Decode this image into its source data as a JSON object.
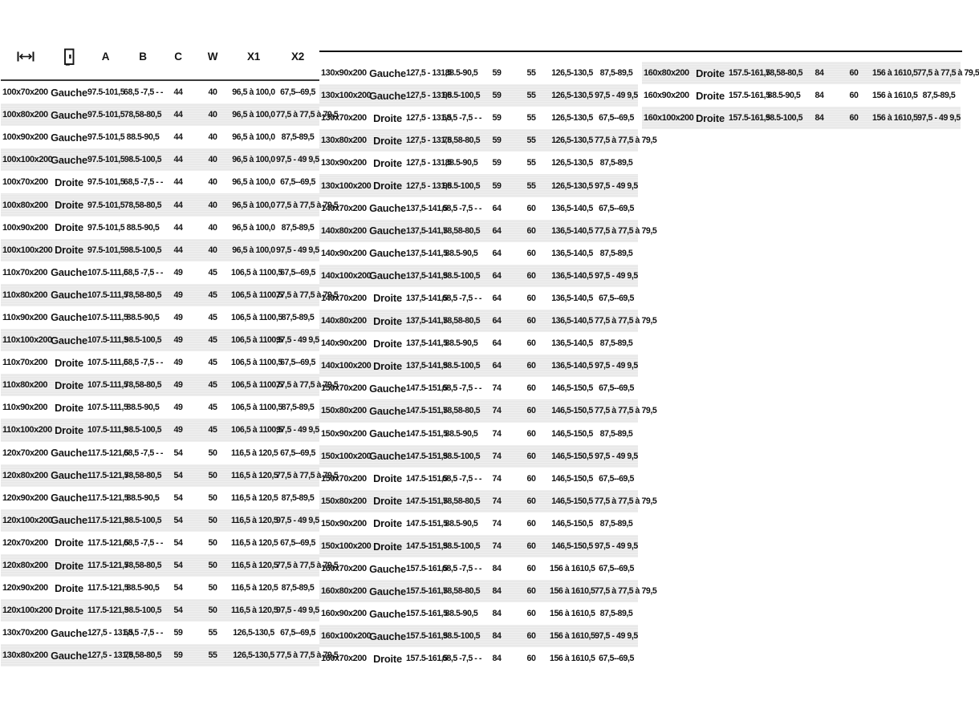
{
  "document": {
    "kind": "dimension-spec-table",
    "language": "fr"
  },
  "colors": {
    "background": "#ffffff",
    "stripe": "#ececec",
    "text": "#141414",
    "rule": "#0a0a0a"
  },
  "table": {
    "header": {
      "size_icon": "width-dimension-icon",
      "side_icon": "door-icon",
      "labels": [
        "A",
        "B",
        "C",
        "W",
        "X1",
        "X2"
      ]
    },
    "rows": [
      {
        "size": "100x70x200",
        "side": "Gauche",
        "a": "97.5-101,5",
        "b": "68,5 -7,5 - -",
        "c": "44",
        "w": "40",
        "x1": "96,5 à 100,0",
        "x2": "67,5--69,5"
      },
      {
        "size": "100x80x200",
        "side": "Gauche",
        "a": "97.5-101,5",
        "b": "78,58-80,5",
        "c": "44",
        "w": "40",
        "x1": "96,5 à 100,0",
        "x2": "77,5 à 77,5 à 79,5"
      },
      {
        "size": "100x90x200",
        "side": "Gauche",
        "a": "97.5-101,5",
        "b": "88.5-90,5",
        "c": "44",
        "w": "40",
        "x1": "96,5 à 100,0",
        "x2": "87,5-89,5"
      },
      {
        "size": "100x100x200",
        "side": "Gauche",
        "a": "97.5-101,5",
        "b": "98.5-100,5",
        "c": "44",
        "w": "40",
        "x1": "96,5 à 100,0",
        "x2": "97,5 - 49 9,5"
      },
      {
        "size": "100x70x200",
        "side": "Droite",
        "a": "97.5-101,5",
        "b": "68,5 -7,5 - -",
        "c": "44",
        "w": "40",
        "x1": "96,5 à 100,0",
        "x2": "67,5--69,5"
      },
      {
        "size": "100x80x200",
        "side": "Droite",
        "a": "97.5-101,5",
        "b": "78,58-80,5",
        "c": "44",
        "w": "40",
        "x1": "96,5 à 100,0",
        "x2": "77,5 à 77,5 à 79,5"
      },
      {
        "size": "100x90x200",
        "side": "Droite",
        "a": "97.5-101,5",
        "b": "88.5-90,5",
        "c": "44",
        "w": "40",
        "x1": "96,5 à 100,0",
        "x2": "87,5-89,5"
      },
      {
        "size": "100x100x200",
        "side": "Droite",
        "a": "97.5-101,5",
        "b": "98.5-100,5",
        "c": "44",
        "w": "40",
        "x1": "96,5 à 100,0",
        "x2": "97,5 - 49 9,5"
      },
      {
        "size": "110x70x200",
        "side": "Gauche",
        "a": "107.5-111,5",
        "b": "68,5 -7,5 - -",
        "c": "49",
        "w": "45",
        "x1": "106,5 à 1100,5",
        "x2": "67,5--69,5"
      },
      {
        "size": "110x80x200",
        "side": "Gauche",
        "a": "107.5-111,5",
        "b": "78,58-80,5",
        "c": "49",
        "w": "45",
        "x1": "106,5 à 1100,5",
        "x2": "77,5 à 77,5 à 79,5"
      },
      {
        "size": "110x90x200",
        "side": "Gauche",
        "a": "107.5-111,5",
        "b": "88.5-90,5",
        "c": "49",
        "w": "45",
        "x1": "106,5 à 1100,5",
        "x2": "87,5-89,5"
      },
      {
        "size": "110x100x200",
        "side": "Gauche",
        "a": "107.5-111,5",
        "b": "98.5-100,5",
        "c": "49",
        "w": "45",
        "x1": "106,5 à 1100,5",
        "x2": "97,5 - 49 9,5"
      },
      {
        "size": "110x70x200",
        "side": "Droite",
        "a": "107.5-111,5",
        "b": "68,5 -7,5 - -",
        "c": "49",
        "w": "45",
        "x1": "106,5 à 1100,5",
        "x2": "67,5--69,5"
      },
      {
        "size": "110x80x200",
        "side": "Droite",
        "a": "107.5-111,5",
        "b": "78,58-80,5",
        "c": "49",
        "w": "45",
        "x1": "106,5 à 1100,5",
        "x2": "77,5 à 77,5 à 79,5"
      },
      {
        "size": "110x90x200",
        "side": "Droite",
        "a": "107.5-111,5",
        "b": "88.5-90,5",
        "c": "49",
        "w": "45",
        "x1": "106,5 à 1100,5",
        "x2": "87,5-89,5"
      },
      {
        "size": "110x100x200",
        "side": "Droite",
        "a": "107.5-111,5",
        "b": "98.5-100,5",
        "c": "49",
        "w": "45",
        "x1": "106,5 à 1100,5",
        "x2": "97,5 - 49 9,5"
      },
      {
        "size": "120x70x200",
        "side": "Gauche",
        "a": "117.5-121,5",
        "b": "68,5 -7,5 - -",
        "c": "54",
        "w": "50",
        "x1": "116,5 à 120,5",
        "x2": "67,5--69,5"
      },
      {
        "size": "120x80x200",
        "side": "Gauche",
        "a": "117.5-121,5",
        "b": "78,58-80,5",
        "c": "54",
        "w": "50",
        "x1": "116,5 à 120,5",
        "x2": "77,5 à 77,5 à 79,5"
      },
      {
        "size": "120x90x200",
        "side": "Gauche",
        "a": "117.5-121,5",
        "b": "88.5-90,5",
        "c": "54",
        "w": "50",
        "x1": "116,5 à 120,5",
        "x2": "87,5-89,5"
      },
      {
        "size": "120x100x200",
        "side": "Gauche",
        "a": "117.5-121,5",
        "b": "98.5-100,5",
        "c": "54",
        "w": "50",
        "x1": "116,5 à 120,5",
        "x2": "97,5 - 49 9,5"
      },
      {
        "size": "120x70x200",
        "side": "Droite",
        "a": "117.5-121,5",
        "b": "68,5 -7,5 - -",
        "c": "54",
        "w": "50",
        "x1": "116,5 à 120,5",
        "x2": "67,5--69,5"
      },
      {
        "size": "120x80x200",
        "side": "Droite",
        "a": "117.5-121,5",
        "b": "78,58-80,5",
        "c": "54",
        "w": "50",
        "x1": "116,5 à 120,5",
        "x2": "77,5 à 77,5 à 79,5"
      },
      {
        "size": "120x90x200",
        "side": "Droite",
        "a": "117.5-121,5",
        "b": "88.5-90,5",
        "c": "54",
        "w": "50",
        "x1": "116,5 à 120,5",
        "x2": "87,5-89,5"
      },
      {
        "size": "120x100x200",
        "side": "Droite",
        "a": "117.5-121,5",
        "b": "98.5-100,5",
        "c": "54",
        "w": "50",
        "x1": "116,5 à 120,5",
        "x2": "97,5 - 49 9,5"
      },
      {
        "size": "130x70x200",
        "side": "Gauche",
        "a": "127,5 - 131,5",
        "b": "68,5 -7,5 - -",
        "c": "59",
        "w": "55",
        "x1": "126,5-130,5",
        "x2": "67,5--69,5"
      },
      {
        "size": "130x80x200",
        "side": "Gauche",
        "a": "127,5 - 131,5",
        "b": "78,58-80,5",
        "c": "59",
        "w": "55",
        "x1": "126,5-130,5",
        "x2": "77,5 à 77,5 à 79,5"
      },
      {
        "size": "130x90x200",
        "side": "Gauche",
        "a": "127,5 - 131,5",
        "b": "88.5-90,5",
        "c": "59",
        "w": "55",
        "x1": "126,5-130,5",
        "x2": "87,5-89,5"
      },
      {
        "size": "130x100x200",
        "side": "Gauche",
        "a": "127,5 - 131,5",
        "b": "98.5-100,5",
        "c": "59",
        "w": "55",
        "x1": "126,5-130,5",
        "x2": "97,5 - 49 9,5"
      },
      {
        "size": "130x70x200",
        "side": "Droite",
        "a": "127,5 - 131,5",
        "b": "68,5 -7,5 - -",
        "c": "59",
        "w": "55",
        "x1": "126,5-130,5",
        "x2": "67,5--69,5"
      },
      {
        "size": "130x80x200",
        "side": "Droite",
        "a": "127,5 - 131,5",
        "b": "78,58-80,5",
        "c": "59",
        "w": "55",
        "x1": "126,5-130,5",
        "x2": "77,5 à 77,5 à 79,5"
      },
      {
        "size": "130x90x200",
        "side": "Droite",
        "a": "127,5 - 131,5",
        "b": "88.5-90,5",
        "c": "59",
        "w": "55",
        "x1": "126,5-130,5",
        "x2": "87,5-89,5"
      },
      {
        "size": "130x100x200",
        "side": "Droite",
        "a": "127,5 - 131,5",
        "b": "98.5-100,5",
        "c": "59",
        "w": "55",
        "x1": "126,5-130,5",
        "x2": "97,5 - 49 9,5"
      },
      {
        "size": "140x70x200",
        "side": "Gauche",
        "a": "137,5-141,5",
        "b": "68,5 -7,5 - -",
        "c": "64",
        "w": "60",
        "x1": "136,5-140,5",
        "x2": "67,5--69,5"
      },
      {
        "size": "140x80x200",
        "side": "Gauche",
        "a": "137,5-141,5",
        "b": "78,58-80,5",
        "c": "64",
        "w": "60",
        "x1": "136,5-140,5",
        "x2": "77,5 à 77,5 à 79,5"
      },
      {
        "size": "140x90x200",
        "side": "Gauche",
        "a": "137,5-141,5",
        "b": "88.5-90,5",
        "c": "64",
        "w": "60",
        "x1": "136,5-140,5",
        "x2": "87,5-89,5"
      },
      {
        "size": "140x100x200",
        "side": "Gauche",
        "a": "137,5-141,5",
        "b": "98.5-100,5",
        "c": "64",
        "w": "60",
        "x1": "136,5-140,5",
        "x2": "97,5 - 49 9,5"
      },
      {
        "size": "140x70x200",
        "side": "Droite",
        "a": "137,5-141,5",
        "b": "68,5 -7,5 - -",
        "c": "64",
        "w": "60",
        "x1": "136,5-140,5",
        "x2": "67,5--69,5"
      },
      {
        "size": "140x80x200",
        "side": "Droite",
        "a": "137,5-141,5",
        "b": "78,58-80,5",
        "c": "64",
        "w": "60",
        "x1": "136,5-140,5",
        "x2": "77,5 à 77,5 à 79,5"
      },
      {
        "size": "140x90x200",
        "side": "Droite",
        "a": "137,5-141,5",
        "b": "88.5-90,5",
        "c": "64",
        "w": "60",
        "x1": "136,5-140,5",
        "x2": "87,5-89,5"
      },
      {
        "size": "140x100x200",
        "side": "Droite",
        "a": "137,5-141,5",
        "b": "98.5-100,5",
        "c": "64",
        "w": "60",
        "x1": "136,5-140,5",
        "x2": "97,5 - 49 9,5"
      },
      {
        "size": "150x70x200",
        "side": "Gauche",
        "a": "147.5-151,5",
        "b": "68,5 -7,5 - -",
        "c": "74",
        "w": "60",
        "x1": "146,5-150,5",
        "x2": "67,5--69,5"
      },
      {
        "size": "150x80x200",
        "side": "Gauche",
        "a": "147.5-151,5",
        "b": "78,58-80,5",
        "c": "74",
        "w": "60",
        "x1": "146,5-150,5",
        "x2": "77,5 à 77,5 à 79,5"
      },
      {
        "size": "150x90x200",
        "side": "Gauche",
        "a": "147.5-151,5",
        "b": "88.5-90,5",
        "c": "74",
        "w": "60",
        "x1": "146,5-150,5",
        "x2": "87,5-89,5"
      },
      {
        "size": "150x100x200",
        "side": "Gauche",
        "a": "147.5-151,5",
        "b": "98.5-100,5",
        "c": "74",
        "w": "60",
        "x1": "146,5-150,5",
        "x2": "97,5 - 49 9,5"
      },
      {
        "size": "150x70x200",
        "side": "Droite",
        "a": "147.5-151,5",
        "b": "68,5 -7,5 - -",
        "c": "74",
        "w": "60",
        "x1": "146,5-150,5",
        "x2": "67,5--69,5"
      },
      {
        "size": "150x80x200",
        "side": "Droite",
        "a": "147.5-151,5",
        "b": "78,58-80,5",
        "c": "74",
        "w": "60",
        "x1": "146,5-150,5",
        "x2": "77,5 à 77,5 à 79,5"
      },
      {
        "size": "150x90x200",
        "side": "Droite",
        "a": "147.5-151,5",
        "b": "88.5-90,5",
        "c": "74",
        "w": "60",
        "x1": "146,5-150,5",
        "x2": "87,5-89,5"
      },
      {
        "size": "150x100x200",
        "side": "Droite",
        "a": "147.5-151,5",
        "b": "98.5-100,5",
        "c": "74",
        "w": "60",
        "x1": "146,5-150,5",
        "x2": "97,5 - 49 9,5"
      },
      {
        "size": "160x70x200",
        "side": "Gauche",
        "a": "157.5-161,5",
        "b": "68,5 -7,5 - -",
        "c": "84",
        "w": "60",
        "x1": "156 à 1610,5",
        "x2": "67,5--69,5"
      },
      {
        "size": "160x80x200",
        "side": "Gauche",
        "a": "157.5-161,5",
        "b": "78,58-80,5",
        "c": "84",
        "w": "60",
        "x1": "156 à 1610,5",
        "x2": "77,5 à 77,5 à 79,5"
      },
      {
        "size": "160x90x200",
        "side": "Gauche",
        "a": "157.5-161,5",
        "b": "88.5-90,5",
        "c": "84",
        "w": "60",
        "x1": "156 à 1610,5",
        "x2": "87,5-89,5"
      },
      {
        "size": "160x100x200",
        "side": "Gauche",
        "a": "157.5-161,5",
        "b": "98.5-100,5",
        "c": "84",
        "w": "60",
        "x1": "156 à 1610,5",
        "x2": "97,5 - 49 9,5"
      },
      {
        "size": "160x70x200",
        "side": "Droite",
        "a": "157.5-161,5",
        "b": "68,5 -7,5 - -",
        "c": "84",
        "w": "60",
        "x1": "156 à 1610,5",
        "x2": "67,5--69,5"
      },
      {
        "size": "160x80x200",
        "side": "Droite",
        "a": "157.5-161,5",
        "b": "78,58-80,5",
        "c": "84",
        "w": "60",
        "x1": "156 à 1610,5",
        "x2": "77,5 à 77,5 à 79,5"
      },
      {
        "size": "160x90x200",
        "side": "Droite",
        "a": "157.5-161,5",
        "b": "88.5-90,5",
        "c": "84",
        "w": "60",
        "x1": "156 à 1610,5",
        "x2": "87,5-89,5"
      },
      {
        "size": "160x100x200",
        "side": "Droite",
        "a": "157.5-161,5",
        "b": "98.5-100,5",
        "c": "84",
        "w": "60",
        "x1": "156 à 1610,5",
        "x2": "97,5 - 49 9,5"
      }
    ]
  }
}
